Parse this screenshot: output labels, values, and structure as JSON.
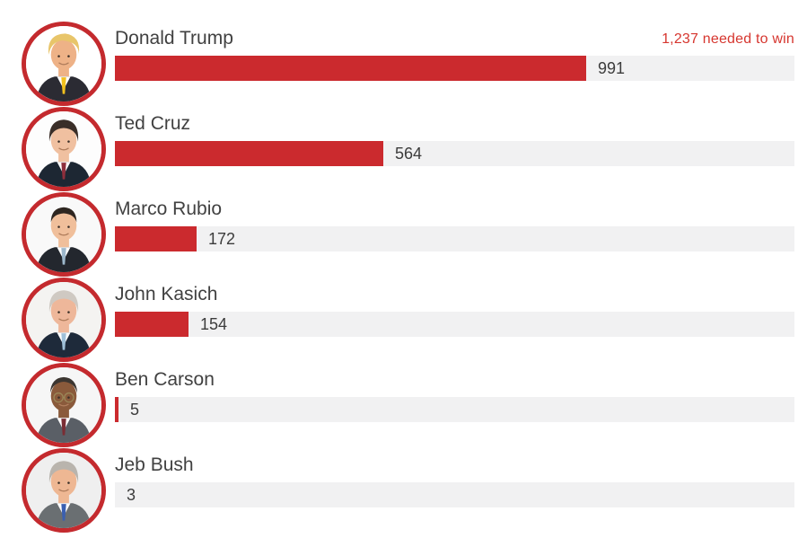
{
  "chart": {
    "annotation": {
      "text": "1,237 needed to win",
      "color": "#d6362f"
    },
    "bar_color": "#cb2a2e",
    "track_color": "#f1f1f2",
    "ring_color": "#c42a2e",
    "scale_max": 1430
  },
  "candidates": [
    {
      "name": "Donald Trump",
      "delegates": "991",
      "value": 991,
      "avatar": {
        "bg": "#ffffff",
        "skin": "#eeb287",
        "hair": "#e8c56a",
        "suit": "#2b2b33",
        "shirt": "#ffffff",
        "tie": "#f2c11e",
        "hair_style": "swoop",
        "glasses": false
      }
    },
    {
      "name": "Ted Cruz",
      "delegates": "564",
      "value": 564,
      "avatar": {
        "bg": "#fdfdfd",
        "skin": "#f0c0a0",
        "hair": "#3a2e28",
        "suit": "#1d2733",
        "shirt": "#ffffff",
        "tie": "#8e2f3c",
        "hair_style": "full",
        "glasses": false
      }
    },
    {
      "name": "Marco Rubio",
      "delegates": "172",
      "value": 172,
      "avatar": {
        "bg": "#f9f9f9",
        "skin": "#f0bf9b",
        "hair": "#2e2620",
        "suit": "#23272e",
        "shirt": "#ffffff",
        "tie": "#9db8cc",
        "hair_style": "receding",
        "glasses": false
      }
    },
    {
      "name": "John Kasich",
      "delegates": "154",
      "value": 154,
      "avatar": {
        "bg": "#f4f3f1",
        "skin": "#eeb79a",
        "hair": "#cfc9c2",
        "suit": "#1e2a3a",
        "shirt": "#ffffff",
        "tie": "#9fc0d8",
        "hair_style": "full",
        "glasses": false
      }
    },
    {
      "name": "Ben Carson",
      "delegates": "5",
      "value": 5,
      "avatar": {
        "bg": "#f6f6f6",
        "skin": "#8a5a3b",
        "hair": "#3c3631",
        "suit": "#5a5f66",
        "shirt": "#ffffff",
        "tie": "#7a2d34",
        "hair_style": "short",
        "glasses": true
      }
    },
    {
      "name": "Jeb Bush",
      "delegates": "3",
      "value": 3,
      "avatar": {
        "bg": "#efefef",
        "skin": "#eeb793",
        "hair": "#b9b4ad",
        "suit": "#6a6f72",
        "shirt": "#ffffff",
        "tie": "#3a5fb0",
        "hair_style": "full",
        "glasses": false
      }
    }
  ],
  "chart_data": {
    "type": "bar",
    "orientation": "horizontal",
    "title": "",
    "categories": [
      "Donald Trump",
      "Ted Cruz",
      "Marco Rubio",
      "John Kasich",
      "Ben Carson",
      "Jeb Bush"
    ],
    "values": [
      991,
      564,
      172,
      154,
      5,
      3
    ],
    "data_labels": [
      "991",
      "564",
      "172",
      "154",
      "5",
      "3"
    ],
    "annotation": "1,237 needed to win",
    "target_value": 1237,
    "xlabel": "",
    "ylabel": "",
    "xlim": [
      0,
      1430
    ],
    "grid": false,
    "legend": "none"
  }
}
